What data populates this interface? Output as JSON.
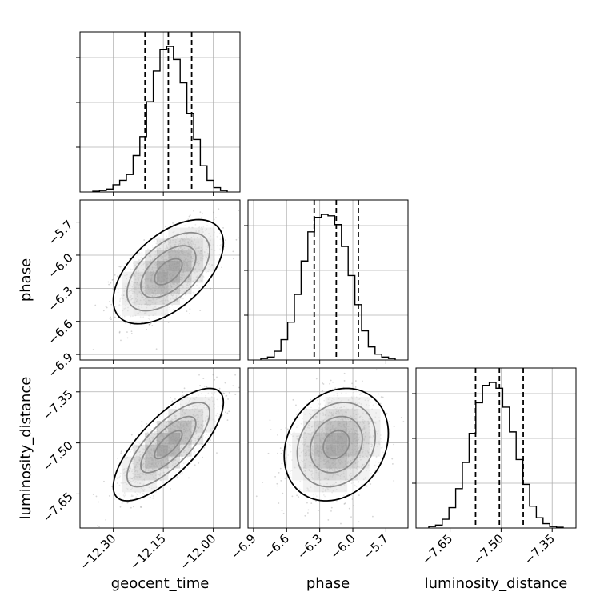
{
  "chart_data": {
    "type": "corner",
    "parameters": [
      {
        "key": "geocent_time",
        "label": "geocent_time",
        "range": [
          -12.4,
          -11.92
        ],
        "ticks": [
          -12.3,
          -12.15,
          -12.0
        ],
        "tick_labels": [
          "−12.30",
          "−12.15",
          "−12.00"
        ],
        "median": -12.135,
        "quantiles": [
          -12.205,
          -12.135,
          -12.065
        ]
      },
      {
        "key": "phase",
        "label": "phase",
        "range": [
          -6.95,
          -5.5
        ],
        "ticks": [
          -6.9,
          -6.6,
          -6.3,
          -6.0,
          -5.7
        ],
        "tick_labels": [
          "−6.9",
          "−6.6",
          "−6.3",
          "−6.0",
          "−5.7"
        ],
        "median": -6.15,
        "quantiles": [
          -6.35,
          -6.15,
          -5.95
        ]
      },
      {
        "key": "luminosity_distance",
        "label": "luminosity_distance",
        "range": [
          -7.75,
          -7.28
        ],
        "ticks": [
          -7.65,
          -7.5,
          -7.35
        ],
        "tick_labels": [
          "−7.65",
          "−7.50",
          "−7.35"
        ],
        "median": -7.505,
        "quantiles": [
          -7.575,
          -7.505,
          -7.435
        ]
      }
    ],
    "histograms": [
      {
        "param": "geocent_time",
        "bins": 20,
        "counts": [
          0.005,
          0.01,
          0.02,
          0.05,
          0.08,
          0.12,
          0.25,
          0.38,
          0.62,
          0.83,
          0.98,
          1.0,
          0.91,
          0.75,
          0.54,
          0.36,
          0.18,
          0.08,
          0.03,
          0.01
        ]
      },
      {
        "param": "phase",
        "bins": 20,
        "counts": [
          0.01,
          0.02,
          0.06,
          0.14,
          0.26,
          0.45,
          0.68,
          0.88,
          0.98,
          1.0,
          0.99,
          0.93,
          0.78,
          0.58,
          0.38,
          0.2,
          0.09,
          0.04,
          0.02,
          0.01
        ]
      },
      {
        "param": "luminosity_distance",
        "bins": 20,
        "counts": [
          0.01,
          0.02,
          0.06,
          0.14,
          0.27,
          0.45,
          0.65,
          0.86,
          0.98,
          1.0,
          0.96,
          0.83,
          0.66,
          0.47,
          0.3,
          0.15,
          0.07,
          0.03,
          0.01,
          0.005
        ]
      }
    ],
    "pairs": [
      {
        "x": "geocent_time",
        "y": "phase",
        "correlation": 0.55,
        "sigma_x": 0.07,
        "sigma_y": 0.2
      },
      {
        "x": "geocent_time",
        "y": "luminosity_distance",
        "correlation": 0.75,
        "sigma_x": 0.07,
        "sigma_y": 0.07
      },
      {
        "x": "phase",
        "y": "luminosity_distance",
        "correlation": 0.2,
        "sigma_x": 0.2,
        "sigma_y": 0.07
      }
    ],
    "contour_levels": [
      "0.5σ",
      "1σ",
      "1.5σ",
      "2σ"
    ],
    "grid": true,
    "colors": {
      "line": "#000000",
      "grid": "#b0b0b0",
      "points": "#888888",
      "shade": "#000000"
    }
  }
}
